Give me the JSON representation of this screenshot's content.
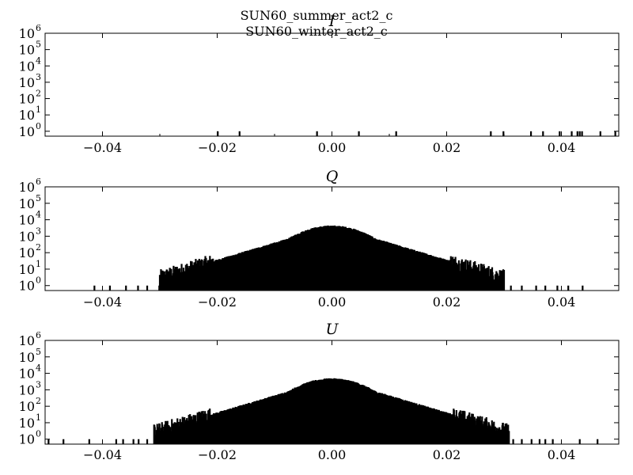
{
  "suptitles": [
    "SUN60_summer_act2_c",
    "SUN60_winter_act2_c"
  ],
  "chart_data": [
    {
      "type": "histogram",
      "title": "I",
      "yscale": "log",
      "xlim": [
        -0.05,
        0.05
      ],
      "ylim": [
        0.5,
        1000000
      ],
      "xticks": [
        "−0.04",
        "−0.02",
        "0.00",
        "0.02",
        "0.04"
      ],
      "yticks": [
        {
          "base": "10",
          "exp": "0"
        },
        {
          "base": "10",
          "exp": "1"
        },
        {
          "base": "10",
          "exp": "2"
        },
        {
          "base": "10",
          "exp": "3"
        },
        {
          "base": "10",
          "exp": "4"
        },
        {
          "base": "10",
          "exp": "5"
        },
        {
          "base": "10",
          "exp": "6"
        }
      ],
      "series": [
        {
          "x": [
            -0.0199,
            -0.0161,
            -0.0026,
            0.0047,
            0.0112,
            0.0277,
            0.0299,
            0.0347,
            0.0368,
            0.0397,
            0.0418,
            0.0428,
            0.0432,
            0.0436,
            0.0468,
            0.0494
          ],
          "y": [
            1,
            1,
            1,
            1,
            1,
            1,
            1,
            1,
            1,
            1,
            1,
            1,
            1,
            1,
            1,
            1
          ]
        }
      ]
    },
    {
      "type": "histogram",
      "title": "Q",
      "yscale": "log",
      "xlim": [
        -0.05,
        0.05
      ],
      "ylim": [
        0.5,
        1000000
      ],
      "xticks": [
        "−0.04",
        "−0.02",
        "0.00",
        "0.02",
        "0.04"
      ],
      "yticks": [
        {
          "base": "10",
          "exp": "0"
        },
        {
          "base": "10",
          "exp": "1"
        },
        {
          "base": "10",
          "exp": "2"
        },
        {
          "base": "10",
          "exp": "3"
        },
        {
          "base": "10",
          "exp": "4"
        },
        {
          "base": "10",
          "exp": "5"
        },
        {
          "base": "10",
          "exp": "6"
        }
      ],
      "peak": 4000,
      "width_sigma": 0.0059,
      "x_core": [
        -0.03,
        0.03
      ],
      "tails": [
        -0.0414,
        -0.0387,
        -0.0359,
        -0.0338,
        -0.0322,
        -0.0301,
        -0.0287,
        -0.0266,
        0.0298,
        0.0312,
        0.0331,
        0.0356,
        0.0372,
        0.0393,
        0.0412,
        0.0437
      ]
    },
    {
      "type": "histogram",
      "title": "U",
      "yscale": "log",
      "xlim": [
        -0.05,
        0.05
      ],
      "ylim": [
        0.5,
        1000000
      ],
      "xticks": [
        "−0.04",
        "−0.02",
        "0.00",
        "0.02",
        "0.04"
      ],
      "yticks": [
        {
          "base": "10",
          "exp": "0"
        },
        {
          "base": "10",
          "exp": "1"
        },
        {
          "base": "10",
          "exp": "2"
        },
        {
          "base": "10",
          "exp": "3"
        },
        {
          "base": "10",
          "exp": "4"
        },
        {
          "base": "10",
          "exp": "5"
        },
        {
          "base": "10",
          "exp": "6"
        }
      ],
      "peak": 4500,
      "width_sigma": 0.0059,
      "x_core": [
        -0.031,
        0.031
      ],
      "tails": [
        -0.0494,
        -0.0468,
        -0.0423,
        -0.0376,
        -0.0364,
        -0.0346,
        -0.0337,
        -0.0322,
        -0.0305,
        0.0316,
        0.0331,
        0.0348,
        0.0362,
        0.0372,
        0.0385,
        0.0432,
        0.0463
      ]
    }
  ]
}
